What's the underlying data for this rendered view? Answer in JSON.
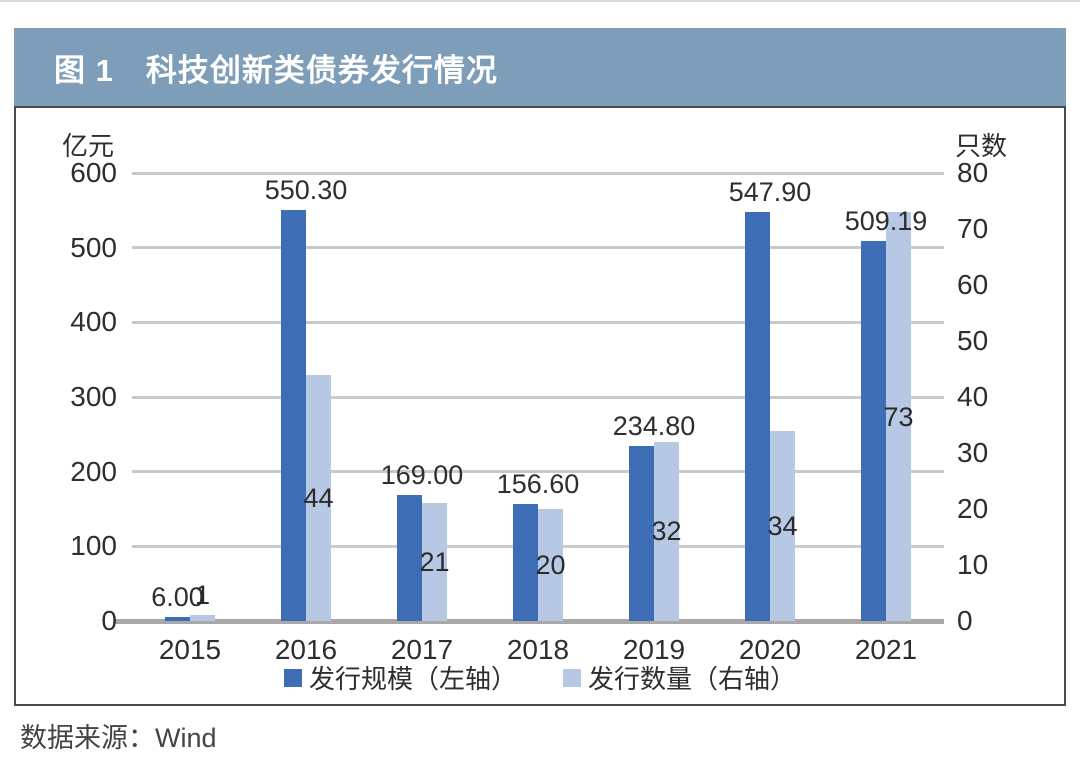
{
  "title": {
    "text": "图 1　科技创新类债券发行情况"
  },
  "source": {
    "text": "数据来源：Wind"
  },
  "colors": {
    "title_bar_bg": "#7d9db8",
    "title_text": "#ffffff",
    "scale_bar": "#3d6db5",
    "count_bar": "#b7c8e5",
    "gridline": "#c9c9c9",
    "zero_line": "#a8a8a8",
    "panel_border": "#4a4a4a"
  },
  "chart_data": {
    "type": "bar",
    "title": "图 1　科技创新类债券发行情况",
    "categories": [
      "2015",
      "2016",
      "2017",
      "2018",
      "2019",
      "2020",
      "2021"
    ],
    "series": [
      {
        "name": "发行规模（左轴）",
        "axis": "left",
        "color": "#3d6db5",
        "values": [
          6.0,
          550.3,
          169.0,
          156.6,
          234.8,
          547.9,
          509.19
        ],
        "labels": [
          "6.00",
          "550.30",
          "169.00",
          "156.60",
          "234.80",
          "547.90",
          "509.19"
        ]
      },
      {
        "name": "发行数量（右轴）",
        "axis": "right",
        "color": "#b7c8e5",
        "values": [
          1,
          44,
          21,
          20,
          32,
          34,
          73
        ],
        "labels": [
          "1",
          "44",
          "21",
          "20",
          "32",
          "34",
          "73"
        ]
      }
    ],
    "left_axis": {
      "unit": "亿元",
      "min": 0,
      "max": 600,
      "step": 100
    },
    "right_axis": {
      "unit": "只数",
      "min": 0,
      "max": 80,
      "step": 10
    },
    "grid": true,
    "legend_position": "bottom"
  }
}
